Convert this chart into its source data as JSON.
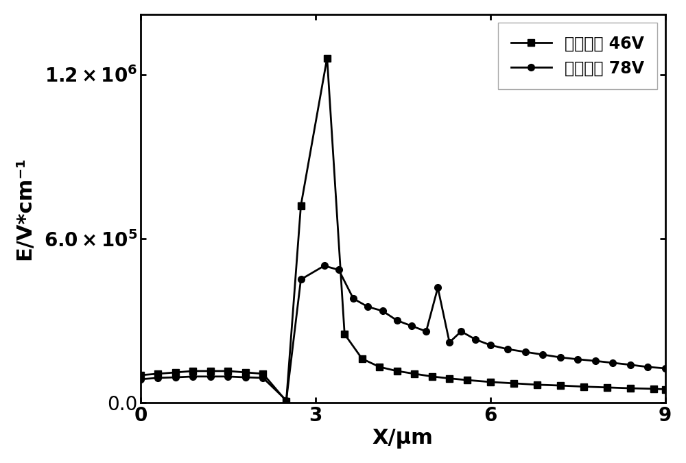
{
  "series1_label": "传统结构 46V",
  "series2_label": "新型结构 78V",
  "xlabel": "X/μm",
  "ylabel": "E/V*cm⁻¹",
  "xlim": [
    0,
    9
  ],
  "ylim": [
    0,
    1420000.0
  ],
  "yticks": [
    0.0,
    600000.0,
    1200000.0
  ],
  "xticks": [
    0,
    3,
    6,
    9
  ],
  "line_color": "#000000",
  "background_color": "#ffffff",
  "series1_x": [
    0.0,
    0.3,
    0.6,
    0.9,
    1.2,
    1.5,
    1.8,
    2.1,
    2.5,
    2.75,
    3.2,
    3.5,
    3.8,
    4.1,
    4.4,
    4.7,
    5.0,
    5.3,
    5.6,
    6.0,
    6.4,
    6.8,
    7.2,
    7.6,
    8.0,
    8.4,
    8.8,
    9.0
  ],
  "series1_y": [
    100000.0,
    105000.0,
    110000.0,
    115000.0,
    115000.0,
    115000.0,
    110000.0,
    105000.0,
    5000.0,
    720000.0,
    1260000.0,
    250000.0,
    160000.0,
    130000.0,
    115000.0,
    105000.0,
    95000.0,
    88000.0,
    82000.0,
    75000.0,
    70000.0,
    65000.0,
    62000.0,
    58000.0,
    55000.0,
    52000.0,
    50000.0,
    48000.0
  ],
  "series2_x": [
    0.0,
    0.3,
    0.6,
    0.9,
    1.2,
    1.5,
    1.8,
    2.1,
    2.5,
    2.75,
    3.15,
    3.4,
    3.65,
    3.9,
    4.15,
    4.4,
    4.65,
    4.9,
    5.1,
    5.3,
    5.5,
    5.75,
    6.0,
    6.3,
    6.6,
    6.9,
    7.2,
    7.5,
    7.8,
    8.1,
    8.4,
    8.7,
    9.0
  ],
  "series2_y": [
    85000.0,
    90000.0,
    92000.0,
    95000.0,
    95000.0,
    95000.0,
    92000.0,
    90000.0,
    8000.0,
    450000.0,
    500000.0,
    485000.0,
    380000.0,
    350000.0,
    335000.0,
    300000.0,
    280000.0,
    260000.0,
    420000.0,
    220000.0,
    260000.0,
    230000.0,
    210000.0,
    195000.0,
    185000.0,
    175000.0,
    165000.0,
    158000.0,
    152000.0,
    145000.0,
    138000.0,
    130000.0,
    125000.0
  ]
}
